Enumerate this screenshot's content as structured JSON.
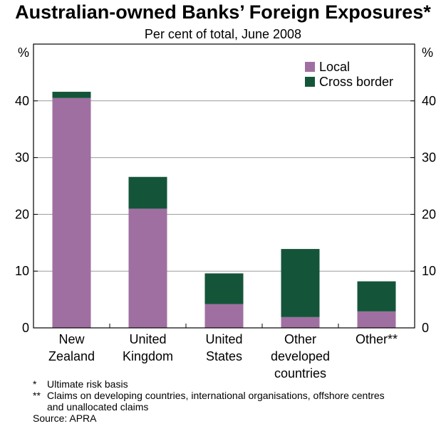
{
  "title": "Australian-owned Banks’ Foreign Exposures*",
  "subtitle": "Per cent of total, June 2008",
  "chart_data": {
    "type": "bar",
    "stacked": true,
    "categories": [
      [
        "New",
        "Zealand"
      ],
      [
        "United",
        "Kingdom"
      ],
      [
        "United",
        "States"
      ],
      [
        "Other",
        "developed",
        "countries"
      ],
      [
        "Other**"
      ]
    ],
    "series": [
      {
        "name": "Local",
        "color": "#a06fa1",
        "values": [
          40.5,
          21.0,
          4.2,
          1.9,
          2.9
        ]
      },
      {
        "name": "Cross border",
        "color": "#14553a",
        "values": [
          1.1,
          5.6,
          5.4,
          12.0,
          5.3
        ]
      }
    ],
    "ylim": [
      0,
      50
    ],
    "yticks": [
      0,
      10,
      20,
      30,
      40
    ],
    "y_unit_left": "%",
    "y_unit_right": "%",
    "legend_position": "top-right",
    "grid": true
  },
  "notes": [
    {
      "mark": "*",
      "text": "Ultimate risk basis"
    },
    {
      "mark": "**",
      "text": "Claims on developing countries, international organisations, offshore centres and unallocated claims"
    }
  ],
  "source": "Source: APRA"
}
